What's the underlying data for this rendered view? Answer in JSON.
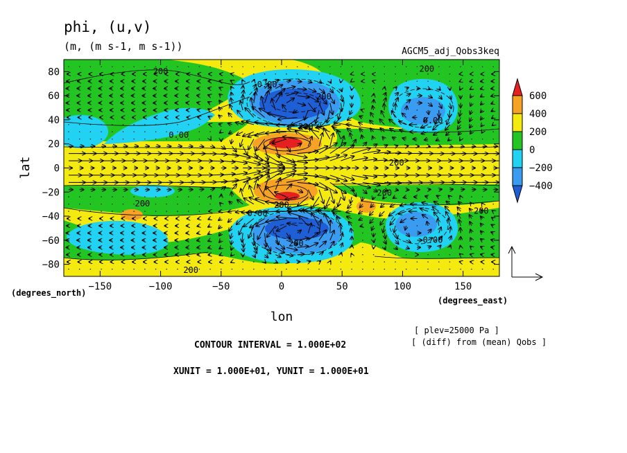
{
  "chart_data": {
    "type": "heatmap",
    "title": "phi, (u,v)",
    "units_line": "(m, (m s-1, m s-1))",
    "dataset_label": "AGCM5_adj_Qobs3keq",
    "xlabel": "lon",
    "ylabel": "lat",
    "x_unit_label": "(degrees_east)",
    "y_unit_label": "(degrees_north)",
    "xlim": [
      -180,
      180
    ],
    "ylim": [
      -90,
      90
    ],
    "x_ticks": [
      -150,
      -100,
      -50,
      0,
      50,
      100,
      150
    ],
    "y_ticks": [
      80,
      60,
      40,
      20,
      0,
      -20,
      -40,
      -60,
      -80
    ],
    "colorbar": {
      "levels": [
        -400,
        -200,
        0,
        200,
        400,
        600
      ],
      "tick_labels": [
        "600",
        "400",
        "200",
        "0",
        "−200",
        "−400"
      ],
      "colors": [
        "#1f5fd6",
        "#3a9cf0",
        "#22d2f2",
        "#22c522",
        "#f5ea10",
        "#f5a225",
        "#e62020"
      ]
    },
    "features": [
      {
        "lon": 10,
        "lat": 20,
        "value": 600
      },
      {
        "lon": 10,
        "lat": -20,
        "value": 500
      },
      {
        "lon": 10,
        "lat": 47,
        "value": -450
      },
      {
        "lon": 10,
        "lat": -50,
        "value": -400
      },
      {
        "lon": 112,
        "lat": 45,
        "value": -300
      },
      {
        "lon": 112,
        "lat": -47,
        "value": -350
      },
      {
        "lon": -155,
        "lat": 35,
        "value": -200
      },
      {
        "lon": -150,
        "lat": -45,
        "value": -200
      },
      {
        "lon": -115,
        "lat": -20,
        "value": -200
      },
      {
        "lon": 70,
        "lat": -33,
        "value": 300
      },
      {
        "lon": -130,
        "lat": -40,
        "value": 300
      },
      {
        "lon": 150,
        "lat": -30,
        "value": 300
      }
    ],
    "contour_labels": [
      {
        "text": "200",
        "lon": -100,
        "lat": 78
      },
      {
        "text": "200",
        "lon": 120,
        "lat": 80
      },
      {
        "text": "0.00",
        "lon": -12,
        "lat": 67
      },
      {
        "text": "200",
        "lon": 35,
        "lat": 57
      },
      {
        "text": "0.00",
        "lon": -85,
        "lat": 25
      },
      {
        "text": "200",
        "lon": 20,
        "lat": 32
      },
      {
        "text": "0.00",
        "lon": 125,
        "lat": 37
      },
      {
        "text": "200",
        "lon": 95,
        "lat": 2
      },
      {
        "text": "200",
        "lon": -115,
        "lat": -32
      },
      {
        "text": "0.00",
        "lon": -20,
        "lat": -40
      },
      {
        "text": "200",
        "lon": 0,
        "lat": -33
      },
      {
        "text": "200",
        "lon": 85,
        "lat": -23
      },
      {
        "text": "200",
        "lon": 165,
        "lat": -38
      },
      {
        "text": "200",
        "lon": 12,
        "lat": -65
      },
      {
        "text": "0.00",
        "lon": 125,
        "lat": -62
      },
      {
        "text": "200",
        "lon": -75,
        "lat": -87
      }
    ],
    "reference_vector": {
      "xunit": 10,
      "yunit": 10
    }
  },
  "notes": {
    "plev": "[ plev=25000 Pa ]",
    "diff": "[ (diff) from (mean) Qobs ]",
    "contour_interval": "CONTOUR INTERVAL = 1.000E+02",
    "units": "XUNIT = 1.000E+01, YUNIT = 1.000E+01"
  }
}
